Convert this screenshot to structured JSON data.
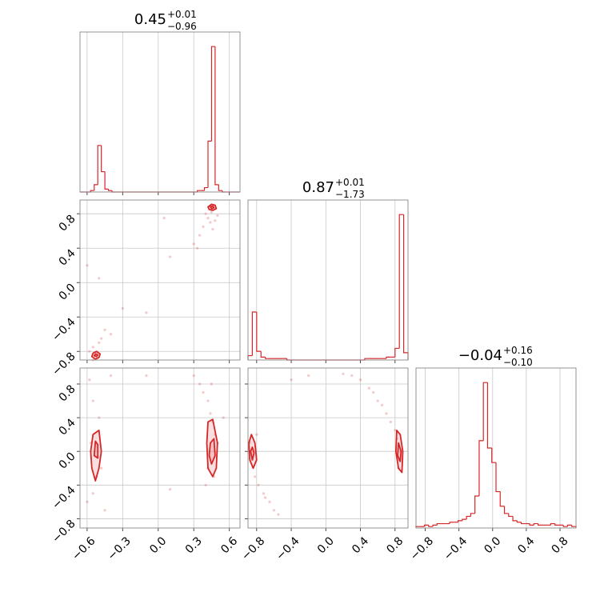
{
  "chart_data": [
    {
      "type": "histogram",
      "color": "#d62728",
      "title": {
        "value": "0.45",
        "upper": "+0.01",
        "lower": "−0.96"
      },
      "xlim": [
        -0.66,
        0.69
      ],
      "ylim": [
        0,
        1.1
      ],
      "xticks": [
        {
          "value": -0.6,
          "label": "−0.6"
        },
        {
          "value": -0.3,
          "label": "−0.3"
        },
        {
          "value": 0,
          "label": "0.0"
        },
        0.3,
        0.6
      ],
      "xtick_labels": false,
      "grid": true,
      "bins": [
        -0.66,
        -0.63,
        -0.6,
        -0.57,
        -0.54,
        -0.51,
        -0.48,
        -0.45,
        -0.42,
        -0.39,
        -0.36,
        -0.33,
        -0.3,
        -0.27,
        -0.24,
        -0.21,
        -0.18,
        -0.15,
        -0.12,
        -0.09,
        -0.06,
        -0.03,
        0,
        0.03,
        0.06,
        0.09,
        0.12,
        0.15,
        0.18,
        0.21,
        0.24,
        0.27,
        0.3,
        0.33,
        0.36,
        0.39,
        0.42,
        0.45,
        0.48,
        0.51,
        0.54,
        0.57,
        0.6,
        0.63,
        0.66,
        0.69
      ],
      "values": [
        0,
        0,
        0,
        0.01,
        0.05,
        0.32,
        0.14,
        0.02,
        0.01,
        0,
        0,
        0,
        0,
        0,
        0,
        0,
        0,
        0,
        0,
        0,
        0,
        0,
        0,
        0,
        0,
        0,
        0,
        0,
        0,
        0,
        0,
        0,
        0,
        0.01,
        0.01,
        0.03,
        0.35,
        1.0,
        0.05,
        0.01,
        0,
        0,
        0,
        0,
        0
      ]
    },
    {
      "type": "scatter",
      "color": "#d62728",
      "xlim": [
        -0.66,
        0.69
      ],
      "ylim": [
        -0.9,
        0.96
      ],
      "xticks": [
        {
          "value": -0.6,
          "label": "−0.6"
        },
        {
          "value": -0.3,
          "label": "−0.3"
        },
        {
          "value": 0,
          "label": "0.0"
        },
        0.3,
        0.6
      ],
      "yticks": [
        {
          "value": -0.8,
          "label": "−0.8"
        },
        {
          "value": -0.4,
          "label": "−0.4"
        },
        {
          "value": 0,
          "label": "0.0"
        },
        0.4,
        0.8
      ],
      "xtick_labels": false,
      "ytick_labels": true,
      "grid": true,
      "x": [
        0.4,
        0.42,
        0.48,
        0.38,
        0.35,
        0.3,
        0.44,
        0.5,
        0.46,
        0.33,
        0.05,
        -0.6,
        -0.5,
        -0.55,
        -0.48,
        -0.58,
        -0.45,
        -0.4,
        -0.3,
        -0.55,
        -0.5,
        0.1,
        -0.1,
        0.45,
        -0.52
      ],
      "y": [
        0.8,
        0.75,
        0.72,
        0.65,
        0.55,
        0.45,
        0.7,
        0.78,
        0.62,
        0.4,
        0.75,
        0.2,
        -0.7,
        -0.75,
        -0.65,
        -0.8,
        -0.55,
        -0.6,
        -0.3,
        -0.9,
        0.05,
        0.3,
        -0.35,
        0.82,
        -0.82
      ],
      "contours": [
        {
          "x": [
            0.42,
            0.45,
            0.48,
            0.49,
            0.46,
            0.43
          ],
          "y": [
            0.88,
            0.91,
            0.9,
            0.86,
            0.84,
            0.85
          ]
        },
        {
          "x": [
            0.44,
            0.46,
            0.47,
            0.45
          ],
          "y": [
            0.88,
            0.89,
            0.87,
            0.86
          ]
        },
        {
          "x": [
            -0.55,
            -0.52,
            -0.49,
            -0.5,
            -0.53,
            -0.56
          ],
          "y": [
            -0.82,
            -0.8,
            -0.83,
            -0.87,
            -0.89,
            -0.86
          ]
        },
        {
          "x": [
            -0.53,
            -0.51,
            -0.52,
            -0.54
          ],
          "y": [
            -0.83,
            -0.84,
            -0.86,
            -0.85
          ]
        }
      ]
    },
    {
      "type": "histogram",
      "color": "#d62728",
      "title": {
        "value": "0.87",
        "upper": "+0.01",
        "lower": "−1.73"
      },
      "xlim": [
        -0.9,
        0.95
      ],
      "ylim": [
        0,
        1.1
      ],
      "xticks": [
        {
          "value": -0.8,
          "label": "−0.8"
        },
        {
          "value": -0.4,
          "label": "−0.4"
        },
        {
          "value": 0,
          "label": "0.0"
        },
        0.4,
        0.8
      ],
      "xtick_labels": false,
      "grid": true,
      "bins": [
        -0.9,
        -0.85,
        -0.8,
        -0.75,
        -0.7,
        -0.65,
        -0.6,
        -0.55,
        -0.5,
        -0.45,
        -0.4,
        -0.35,
        -0.3,
        -0.25,
        -0.2,
        -0.15,
        -0.1,
        -0.05,
        0,
        0.05,
        0.1,
        0.15,
        0.2,
        0.25,
        0.3,
        0.35,
        0.4,
        0.45,
        0.5,
        0.55,
        0.6,
        0.65,
        0.7,
        0.75,
        0.8,
        0.85,
        0.9,
        0.95
      ],
      "values": [
        0.03,
        0.33,
        0.06,
        0.02,
        0.01,
        0.01,
        0.01,
        0.01,
        0.01,
        0,
        0,
        0,
        0,
        0,
        0,
        0,
        0,
        0,
        0,
        0,
        0,
        0,
        0,
        0,
        0,
        0,
        0,
        0.01,
        0.01,
        0.01,
        0.01,
        0.01,
        0.02,
        0.02,
        0.08,
        1.0,
        0.05
      ]
    },
    {
      "type": "scatter",
      "color": "#d62728",
      "xlim": [
        -0.66,
        0.69
      ],
      "ylim": [
        -0.91,
        0.99
      ],
      "xticks": [
        {
          "value": -0.6,
          "label": "−0.6"
        },
        {
          "value": -0.3,
          "label": "−0.3"
        },
        {
          "value": 0,
          "label": "0.0"
        },
        0.3,
        0.6
      ],
      "yticks": [
        {
          "value": -0.8,
          "label": "−0.8"
        },
        {
          "value": -0.4,
          "label": "−0.4"
        },
        {
          "value": 0,
          "label": "0.0"
        },
        0.4,
        0.8
      ],
      "xtick_labels": true,
      "ytick_labels": true,
      "grid": true,
      "x": [
        -0.55,
        -0.5,
        -0.57,
        -0.48,
        -0.55,
        -0.6,
        -0.45,
        -0.52,
        -0.58,
        -0.4,
        0.3,
        0.35,
        0.38,
        0.42,
        0.44,
        0.46,
        0.48,
        0.5,
        0.42,
        0.47,
        0.4,
        0.1,
        -0.1,
        0.55,
        0.45
      ],
      "y": [
        0.6,
        0.4,
        0.1,
        -0.2,
        -0.5,
        -0.6,
        -0.7,
        -0.3,
        0.85,
        0.9,
        0.9,
        0.8,
        0.7,
        0.6,
        0.45,
        0.35,
        0.2,
        0.1,
        -0.2,
        -0.3,
        -0.4,
        -0.45,
        0.9,
        0.4,
        0.8
      ],
      "contours": [
        {
          "x": [
            -0.55,
            -0.5,
            -0.48,
            -0.5,
            -0.53,
            -0.56,
            -0.57
          ],
          "y": [
            0.2,
            0.25,
            0.0,
            -0.2,
            -0.35,
            -0.2,
            0.0
          ]
        },
        {
          "x": [
            -0.53,
            -0.51,
            -0.51,
            -0.54
          ],
          "y": [
            0.12,
            0.08,
            -0.08,
            -0.05
          ]
        },
        {
          "x": [
            0.42,
            0.46,
            0.5,
            0.49,
            0.46,
            0.42,
            0.41
          ],
          "y": [
            0.35,
            0.38,
            0.1,
            -0.2,
            -0.3,
            -0.2,
            0.1
          ]
        },
        {
          "x": [
            0.44,
            0.47,
            0.48,
            0.45,
            0.43
          ],
          "y": [
            0.1,
            0.15,
            -0.05,
            -0.15,
            -0.05
          ]
        }
      ]
    },
    {
      "type": "scatter",
      "color": "#d62728",
      "xlim": [
        -0.9,
        0.95
      ],
      "ylim": [
        -0.91,
        0.99
      ],
      "xticks": [
        {
          "value": -0.8,
          "label": "−0.8"
        },
        {
          "value": -0.4,
          "label": "−0.4"
        },
        {
          "value": 0,
          "label": "0.0"
        },
        0.4,
        0.8
      ],
      "yticks": [
        {
          "value": -0.8,
          "label": "−0.8"
        },
        {
          "value": -0.4,
          "label": "−0.4"
        },
        {
          "value": 0,
          "label": "0.0"
        },
        0.4,
        0.8
      ],
      "xtick_labels": true,
      "ytick_labels": false,
      "grid": true,
      "x": [
        -0.88,
        -0.85,
        -0.82,
        -0.78,
        -0.72,
        -0.65,
        -0.6,
        -0.55,
        -0.7,
        -0.8,
        0.3,
        0.4,
        0.5,
        0.6,
        0.65,
        0.7,
        0.75,
        0.8,
        0.82,
        0.85,
        0.84,
        -0.2,
        0.2,
        0.55,
        -0.4
      ],
      "y": [
        0.1,
        -0.1,
        -0.3,
        -0.4,
        -0.5,
        -0.6,
        -0.7,
        -0.75,
        -0.55,
        0.2,
        0.9,
        0.85,
        0.75,
        0.6,
        0.55,
        0.45,
        0.35,
        0.25,
        0.15,
        -0.1,
        -0.2,
        0.9,
        0.92,
        0.7,
        0.85
      ],
      "contours": [
        {
          "x": [
            -0.86,
            -0.82,
            -0.8,
            -0.84,
            -0.88,
            -0.89
          ],
          "y": [
            0.2,
            0.1,
            -0.1,
            -0.2,
            -0.1,
            0.1
          ]
        },
        {
          "x": [
            -0.85,
            -0.83,
            -0.85,
            -0.87
          ],
          "y": [
            0.05,
            -0.02,
            -0.1,
            0.0
          ]
        },
        {
          "x": [
            0.82,
            0.86,
            0.89,
            0.88,
            0.84,
            0.81
          ],
          "y": [
            0.25,
            0.2,
            0.0,
            -0.25,
            -0.2,
            0.0
          ]
        },
        {
          "x": [
            0.84,
            0.87,
            0.86,
            0.83
          ],
          "y": [
            0.1,
            0.0,
            -0.12,
            -0.05
          ]
        }
      ]
    },
    {
      "type": "histogram",
      "color": "#d62728",
      "title": {
        "value": "−0.04",
        "upper": "+0.16",
        "lower": "−0.10"
      },
      "xlim": [
        -0.91,
        0.99
      ],
      "ylim": [
        0,
        1.1
      ],
      "xticks": [
        {
          "value": -0.8,
          "label": "−0.8"
        },
        {
          "value": -0.4,
          "label": "−0.4"
        },
        {
          "value": 0,
          "label": "0.0"
        },
        0.4,
        0.8
      ],
      "xtick_labels": true,
      "grid": true,
      "bins": [
        -0.91,
        -0.86,
        -0.81,
        -0.76,
        -0.71,
        -0.66,
        -0.61,
        -0.56,
        -0.51,
        -0.46,
        -0.41,
        -0.36,
        -0.31,
        -0.26,
        -0.21,
        -0.16,
        -0.11,
        -0.06,
        -0.01,
        0.04,
        0.09,
        0.14,
        0.19,
        0.24,
        0.29,
        0.34,
        0.39,
        0.44,
        0.49,
        0.54,
        0.59,
        0.64,
        0.69,
        0.74,
        0.79,
        0.84,
        0.89,
        0.94,
        0.99
      ],
      "values": [
        0.01,
        0.01,
        0.02,
        0.01,
        0.02,
        0.03,
        0.03,
        0.03,
        0.04,
        0.04,
        0.05,
        0.06,
        0.08,
        0.1,
        0.22,
        0.6,
        1.0,
        0.55,
        0.45,
        0.25,
        0.15,
        0.1,
        0.08,
        0.05,
        0.04,
        0.03,
        0.03,
        0.02,
        0.03,
        0.02,
        0.02,
        0.02,
        0.03,
        0.02,
        0.02,
        0.01,
        0.02,
        0.01
      ]
    }
  ]
}
